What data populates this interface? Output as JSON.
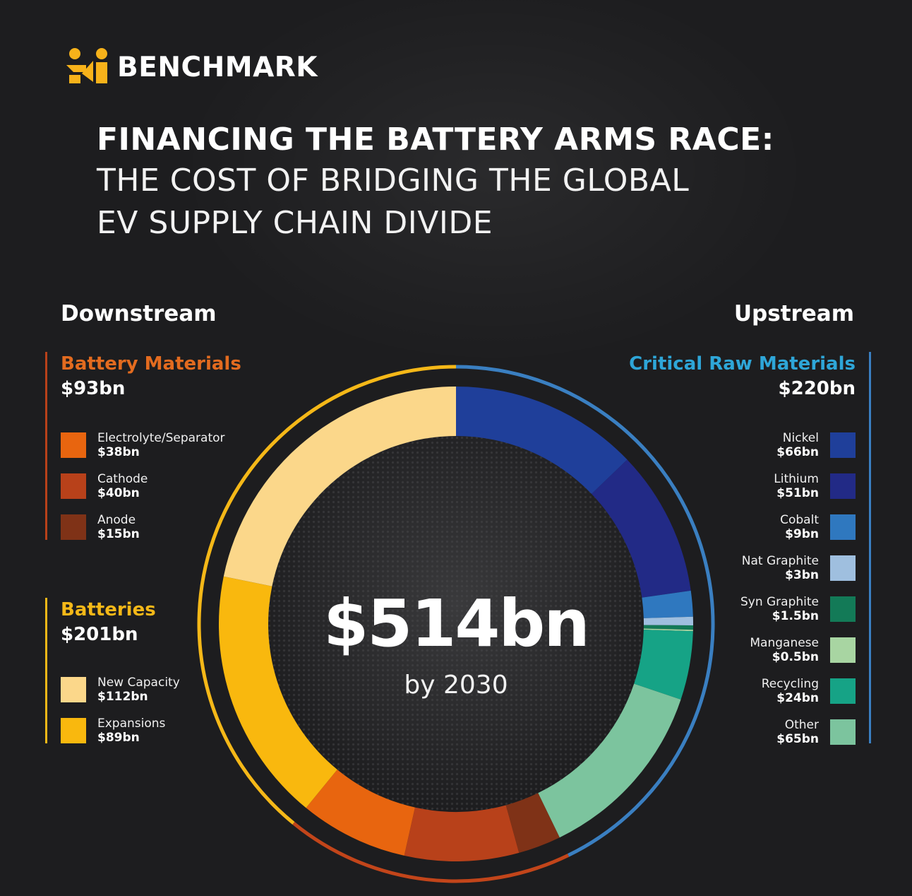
{
  "brand": {
    "name": "BENCHMARK"
  },
  "title": {
    "line1": "FINANCING THE BATTERY ARMS RACE:",
    "line2": "THE COST OF BRIDGING THE GLOBAL",
    "line3": "EV SUPPLY CHAIN DIVIDE"
  },
  "sections": {
    "left": "Downstream",
    "right": "Upstream"
  },
  "center": {
    "total": "$514bn",
    "subtitle": "by 2030"
  },
  "groups": {
    "battery_materials": {
      "label": "Battery Materials",
      "total": "$93bn",
      "color": "#e36b1f",
      "items": [
        {
          "name": "Electrolyte/Separator",
          "value": "$38bn",
          "color": "#e8650f"
        },
        {
          "name": "Cathode",
          "value": "$40bn",
          "color": "#b8411a"
        },
        {
          "name": "Anode",
          "value": "$15bn",
          "color": "#7f3217"
        }
      ]
    },
    "batteries": {
      "label": "Batteries",
      "total": "$201bn",
      "color": "#f5b818",
      "items": [
        {
          "name": "New Capacity",
          "value": "$112bn",
          "color": "#fbd78a"
        },
        {
          "name": "Expansions",
          "value": "$89bn",
          "color": "#f9b80e"
        }
      ]
    },
    "critical_raw_materials": {
      "label": "Critical Raw Materials",
      "total": "$220bn",
      "color": "#2ea6d8",
      "items": [
        {
          "name": "Nickel",
          "value": "$66bn",
          "color": "#1f3f9a"
        },
        {
          "name": "Lithium",
          "value": "$51bn",
          "color": "#222a86"
        },
        {
          "name": "Cobalt",
          "value": "$9bn",
          "color": "#2f78bf"
        },
        {
          "name": "Nat Graphite",
          "value": "$3bn",
          "color": "#9fbfdf"
        },
        {
          "name": "Syn Graphite",
          "value": "$1.5bn",
          "color": "#137a57"
        },
        {
          "name": "Manganese",
          "value": "$0.5bn",
          "color": "#a8d5a2"
        },
        {
          "name": "Recycling",
          "value": "$24bn",
          "color": "#16a386"
        },
        {
          "name": "Other",
          "value": "$65bn",
          "color": "#7cc49e"
        }
      ]
    }
  },
  "chart_data": {
    "type": "pie",
    "style": "donut",
    "unit": "$bn",
    "total": 514,
    "slices": [
      {
        "label": "Nickel",
        "value": 66,
        "color": "#1f3f9a",
        "group": "Critical Raw Materials"
      },
      {
        "label": "Lithium",
        "value": 51,
        "color": "#222a86",
        "group": "Critical Raw Materials"
      },
      {
        "label": "Cobalt",
        "value": 9,
        "color": "#2f78bf",
        "group": "Critical Raw Materials"
      },
      {
        "label": "Nat Graphite",
        "value": 3,
        "color": "#9fbfdf",
        "group": "Critical Raw Materials"
      },
      {
        "label": "Syn Graphite",
        "value": 1.5,
        "color": "#137a57",
        "group": "Critical Raw Materials"
      },
      {
        "label": "Manganese",
        "value": 0.5,
        "color": "#a8d5a2",
        "group": "Critical Raw Materials"
      },
      {
        "label": "Recycling",
        "value": 24,
        "color": "#16a386",
        "group": "Critical Raw Materials"
      },
      {
        "label": "Other",
        "value": 65,
        "color": "#7cc49e",
        "group": "Critical Raw Materials"
      },
      {
        "label": "Anode",
        "value": 15,
        "color": "#7f3217",
        "group": "Battery Materials"
      },
      {
        "label": "Cathode",
        "value": 40,
        "color": "#b8411a",
        "group": "Battery Materials"
      },
      {
        "label": "Electrolyte/Separator",
        "value": 38,
        "color": "#e8650f",
        "group": "Battery Materials"
      },
      {
        "label": "Expansions",
        "value": 89,
        "color": "#f9b80e",
        "group": "Batteries"
      },
      {
        "label": "New Capacity",
        "value": 112,
        "color": "#fbd78a",
        "group": "Batteries"
      }
    ],
    "outer_ring": [
      {
        "label": "Critical Raw Materials",
        "value": 220,
        "color": "#3a7fc1"
      },
      {
        "label": "Battery Materials",
        "value": 93,
        "color": "#c2451a"
      },
      {
        "label": "Batteries",
        "value": 201,
        "color": "#f5b818"
      }
    ]
  }
}
